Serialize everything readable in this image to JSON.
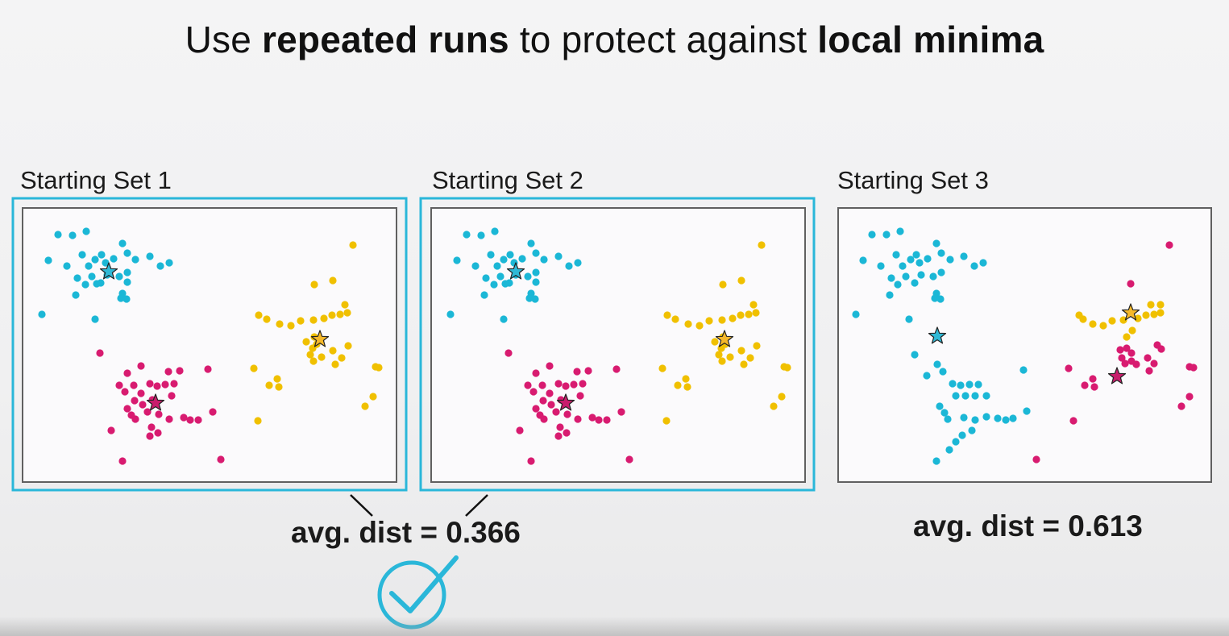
{
  "title": {
    "parts": [
      {
        "text": "Use ",
        "bold": false
      },
      {
        "text": "repeated runs",
        "bold": true
      },
      {
        "text": " to protect against ",
        "bold": false
      },
      {
        "text": "local minima",
        "bold": true
      }
    ]
  },
  "colors": {
    "cyan": "#1bb7d6",
    "magenta": "#d81b70",
    "yellow": "#f0c000",
    "star_cyan": "#2fb9d6",
    "star_magenta": "#c81d6c",
    "star_yellow": "#f5b82a",
    "highlight": "#2ab7d9",
    "frame": "#606060"
  },
  "panels": [
    {
      "label": "Starting Set 1",
      "highlighted": true
    },
    {
      "label": "Starting Set 2",
      "highlighted": true
    },
    {
      "label": "Starting Set 3",
      "highlighted": false
    }
  ],
  "results": {
    "highlighted_pair": "avg. dist = 0.366",
    "third": "avg. dist = 0.613"
  },
  "check_icon": "checkmark-circle-icon"
}
